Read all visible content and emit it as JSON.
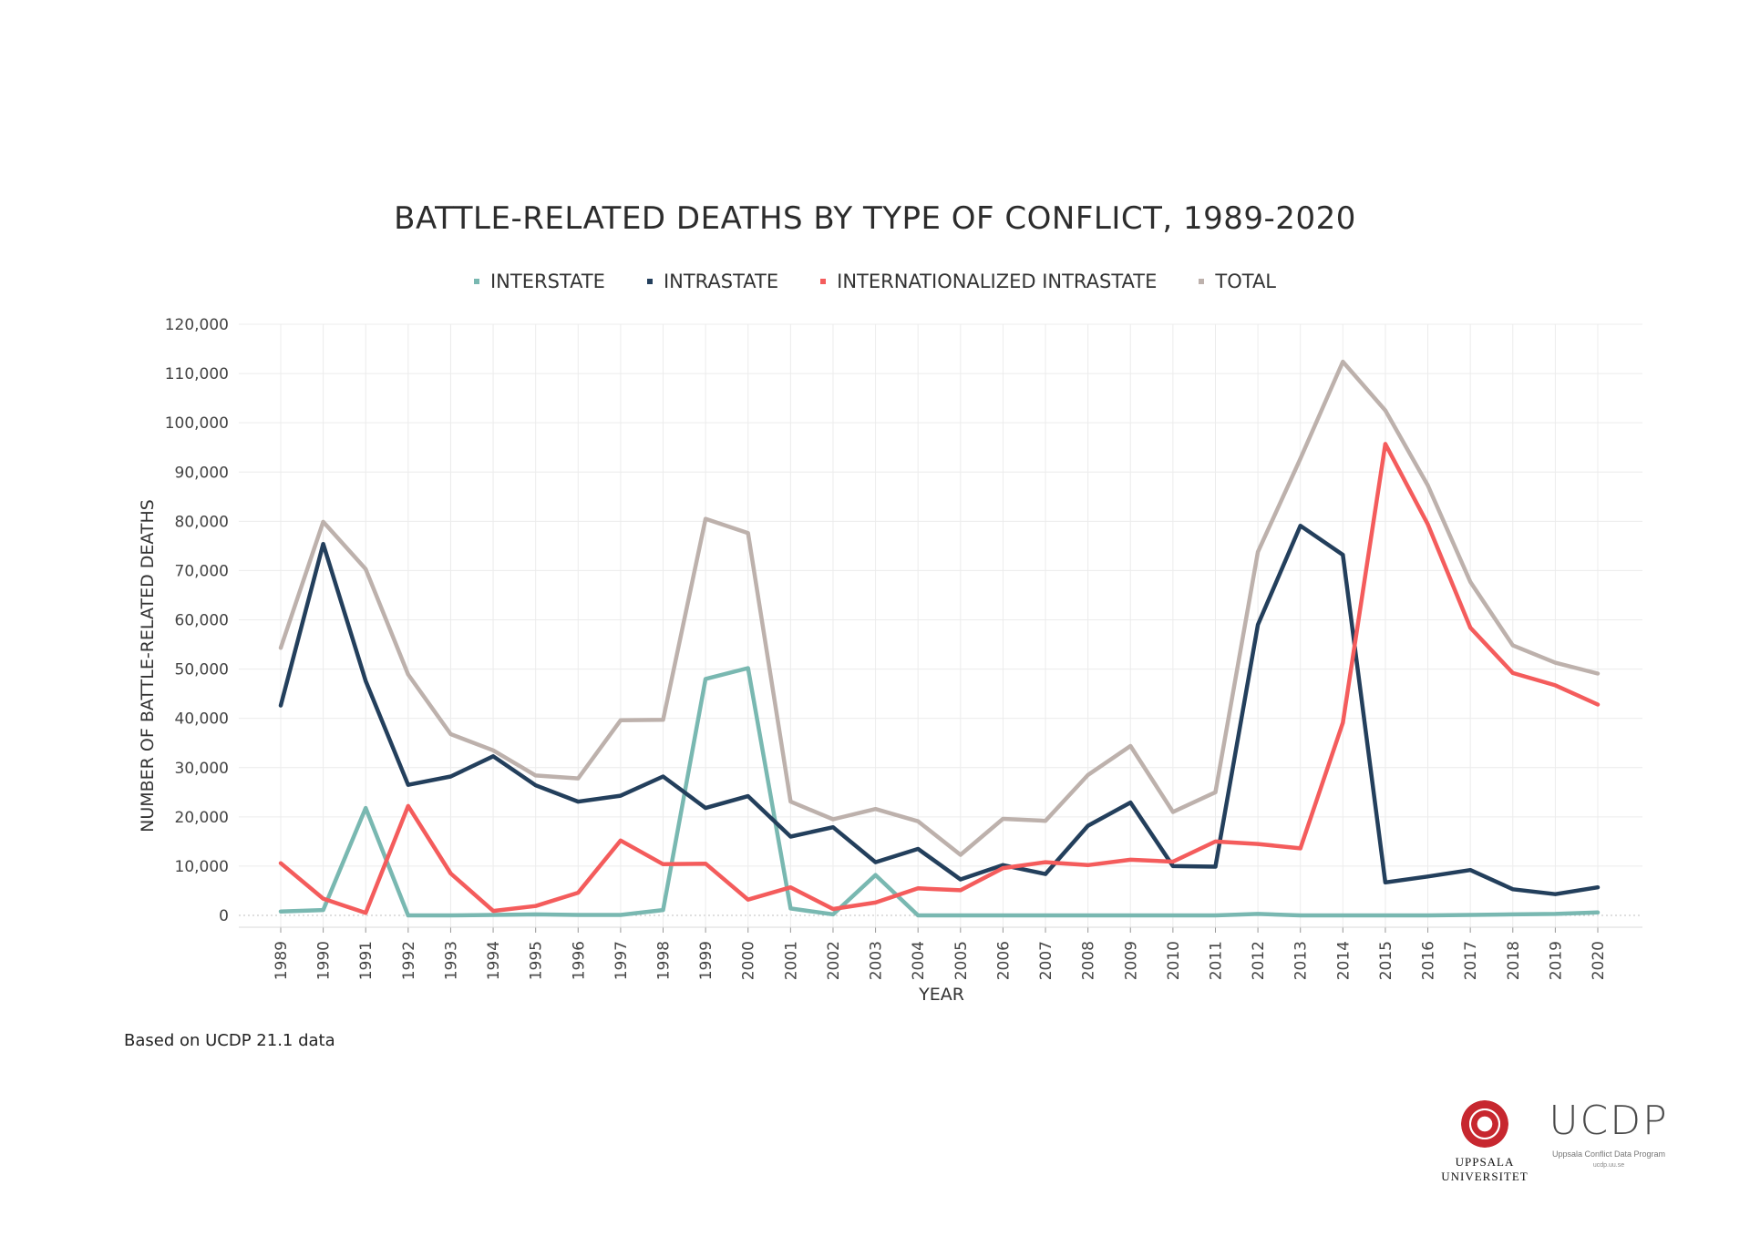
{
  "chart_data": {
    "type": "line",
    "title": "BATTLE-RELATED DEATHS BY TYPE OF CONFLICT, 1989-2020",
    "xlabel": "YEAR",
    "ylabel": "NUMBER OF BATTLE-RELATED DEATHS",
    "ylim": [
      0,
      120000
    ],
    "yticks": [
      "0",
      "10,000",
      "20,000",
      "30,000",
      "40,000",
      "50,000",
      "60,000",
      "70,000",
      "80,000",
      "90,000",
      "100,000",
      "110,000",
      "120,000"
    ],
    "grid": true,
    "legend_position": "top",
    "categories": [
      "1989",
      "1990",
      "1991",
      "1992",
      "1993",
      "1994",
      "1995",
      "1996",
      "1997",
      "1998",
      "1999",
      "2000",
      "2001",
      "2002",
      "2003",
      "2004",
      "2005",
      "2006",
      "2007",
      "2008",
      "2009",
      "2010",
      "2011",
      "2012",
      "2013",
      "2014",
      "2015",
      "2016",
      "2017",
      "2018",
      "2019",
      "2020"
    ],
    "series": [
      {
        "name": "INTERSTATE",
        "color": "#79b8b1",
        "values": [
          800,
          1100,
          21800,
          0,
          0,
          100,
          200,
          100,
          100,
          1100,
          48000,
          50200,
          1400,
          200,
          8200,
          0,
          0,
          0,
          0,
          0,
          0,
          0,
          0,
          300,
          0,
          0,
          0,
          0,
          100,
          200,
          300,
          600
        ]
      },
      {
        "name": "INTRASTATE",
        "color": "#233f5c",
        "values": [
          42600,
          75400,
          47600,
          26500,
          28200,
          32300,
          26400,
          23100,
          24300,
          28200,
          21800,
          24200,
          16000,
          17900,
          10800,
          13500,
          7300,
          10200,
          8400,
          18200,
          22900,
          10000,
          9900,
          59000,
          79100,
          73200,
          6700,
          7900,
          9200,
          5300,
          4300,
          5700
        ]
      },
      {
        "name": "INTERNATIONALIZED INTRASTATE",
        "color": "#f45c5c",
        "values": [
          10600,
          3400,
          500,
          22200,
          8500,
          900,
          1900,
          4600,
          15200,
          10400,
          10500,
          3200,
          5700,
          1300,
          2600,
          5500,
          5100,
          9600,
          10800,
          10200,
          11300,
          10900,
          15000,
          14500,
          13600,
          39100,
          95700,
          79400,
          58400,
          49200,
          46700,
          42800
        ]
      },
      {
        "name": "TOTAL",
        "color": "#bdb1ac",
        "values": [
          54300,
          79900,
          70300,
          48900,
          36800,
          33500,
          28400,
          27800,
          39600,
          39700,
          80500,
          77600,
          23100,
          19500,
          21600,
          19100,
          12300,
          19600,
          19200,
          28500,
          34400,
          21000,
          25000,
          73800,
          92700,
          112400,
          102500,
          87300,
          67700,
          54800,
          51300,
          49100
        ]
      }
    ]
  },
  "footer": {
    "source_note": "Based on UCDP 21.1 data"
  },
  "logos": {
    "uppsala_line1": "UPPSALA",
    "uppsala_line2": "UNIVERSITET",
    "ucdp_wordmark": "UCDP",
    "ucdp_subtitle": "Uppsala Conflict Data Program",
    "ucdp_url": "ucdp.uu.se"
  }
}
